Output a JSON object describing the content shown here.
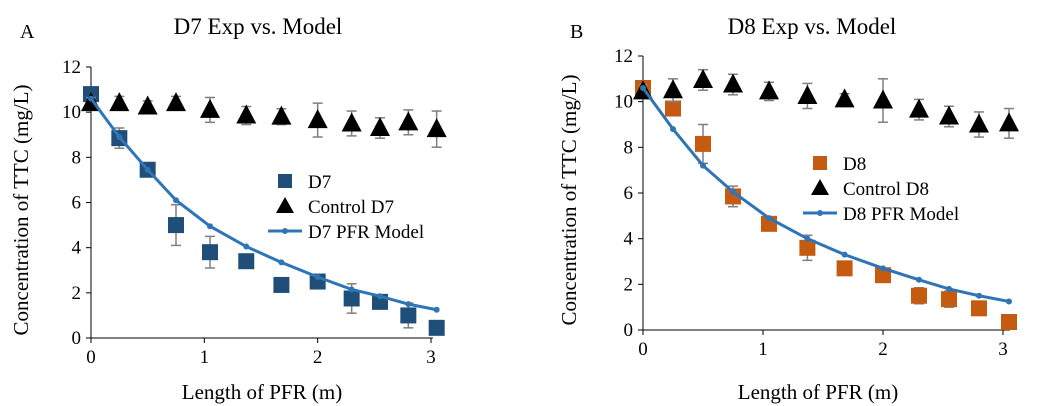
{
  "colors": {
    "d7": "#1f4e79",
    "d8": "#c55a11",
    "control": "#000000",
    "model": "#2e75b6",
    "error": "#7f7f7f"
  },
  "chart_data": [
    {
      "type": "scatter",
      "panel_label": "A",
      "title": "D7 Exp vs. Model",
      "xlabel": "Length of PFR (m)",
      "ylabel": "Concentration of TTC (mg/L)",
      "xlim": [
        0,
        3.2
      ],
      "ylim": [
        0,
        12
      ],
      "xticks": [
        0,
        1,
        2,
        3
      ],
      "yticks": [
        0,
        2,
        4,
        6,
        8,
        10,
        12
      ],
      "grid": false,
      "legend_position": "center-right",
      "series": [
        {
          "name": "D7",
          "marker": "square",
          "color": "#1f4e79",
          "x": [
            0,
            0.25,
            0.5,
            0.75,
            1.05,
            1.37,
            1.68,
            2.0,
            2.3,
            2.55,
            2.8,
            3.05
          ],
          "y": [
            10.8,
            8.85,
            7.45,
            5.0,
            3.8,
            3.4,
            2.35,
            2.5,
            1.75,
            1.6,
            1.0,
            0.45
          ],
          "err": [
            0.2,
            0.45,
            0.25,
            0.9,
            0.7,
            0.25,
            0.25,
            0.3,
            0.65,
            0.3,
            0.55,
            0.2
          ]
        },
        {
          "name": "Control D7",
          "marker": "triangle",
          "color": "#000000",
          "x": [
            0,
            0.25,
            0.5,
            0.75,
            1.05,
            1.37,
            1.68,
            2.0,
            2.3,
            2.55,
            2.8,
            3.05
          ],
          "y": [
            10.4,
            10.4,
            10.25,
            10.4,
            10.1,
            9.85,
            9.8,
            9.65,
            9.5,
            9.3,
            9.55,
            9.25
          ],
          "err": [
            0.25,
            0.3,
            0.25,
            0.3,
            0.55,
            0.4,
            0.35,
            0.75,
            0.55,
            0.45,
            0.55,
            0.8
          ]
        },
        {
          "name": "D7 PFR Model",
          "type": "line",
          "color": "#2e75b6",
          "x": [
            0,
            0.25,
            0.5,
            0.75,
            1.05,
            1.37,
            1.68,
            2.0,
            2.3,
            2.55,
            2.8,
            3.05
          ],
          "y": [
            10.6,
            8.9,
            7.45,
            6.1,
            4.95,
            4.05,
            3.35,
            2.7,
            2.15,
            1.85,
            1.5,
            1.25
          ]
        }
      ]
    },
    {
      "type": "scatter",
      "panel_label": "B",
      "title": "D8 Exp vs. Model",
      "xlabel": "Length of PFR (m)",
      "ylabel": "Concentration of TTC (mg/L)",
      "xlim": [
        0,
        3.2
      ],
      "ylim": [
        0,
        12
      ],
      "xticks": [
        0,
        1,
        2,
        3
      ],
      "yticks": [
        0,
        2,
        4,
        6,
        8,
        10,
        12
      ],
      "grid": false,
      "legend_position": "center-right",
      "series": [
        {
          "name": "D8",
          "marker": "square",
          "color": "#c55a11",
          "x": [
            0,
            0.25,
            0.5,
            0.75,
            1.05,
            1.37,
            1.68,
            2.0,
            2.3,
            2.55,
            2.8,
            3.05
          ],
          "y": [
            10.6,
            9.7,
            8.15,
            5.85,
            4.65,
            3.6,
            2.7,
            2.4,
            1.5,
            1.35,
            0.95,
            0.35
          ],
          "err": [
            0.2,
            0.3,
            0.85,
            0.45,
            0.2,
            0.55,
            0.2,
            0.2,
            0.35,
            0.35,
            0.2,
            0.1
          ]
        },
        {
          "name": "Control D8",
          "marker": "triangle",
          "color": "#000000",
          "x": [
            0,
            0.25,
            0.5,
            0.75,
            1.05,
            1.37,
            1.68,
            2.0,
            2.3,
            2.55,
            2.8,
            3.05
          ],
          "y": [
            10.45,
            10.5,
            10.95,
            10.75,
            10.45,
            10.25,
            10.1,
            10.05,
            9.65,
            9.35,
            9.0,
            9.05
          ],
          "err": [
            0.3,
            0.5,
            0.45,
            0.45,
            0.4,
            0.55,
            0.25,
            0.95,
            0.45,
            0.45,
            0.55,
            0.65
          ]
        },
        {
          "name": "D8 PFR Model",
          "type": "line",
          "color": "#2e75b6",
          "x": [
            0,
            0.25,
            0.5,
            0.75,
            1.05,
            1.37,
            1.68,
            2.0,
            2.3,
            2.55,
            2.8,
            3.05
          ],
          "y": [
            10.6,
            8.8,
            7.2,
            6.05,
            4.9,
            4.0,
            3.3,
            2.7,
            2.2,
            1.8,
            1.5,
            1.25
          ]
        }
      ]
    }
  ]
}
